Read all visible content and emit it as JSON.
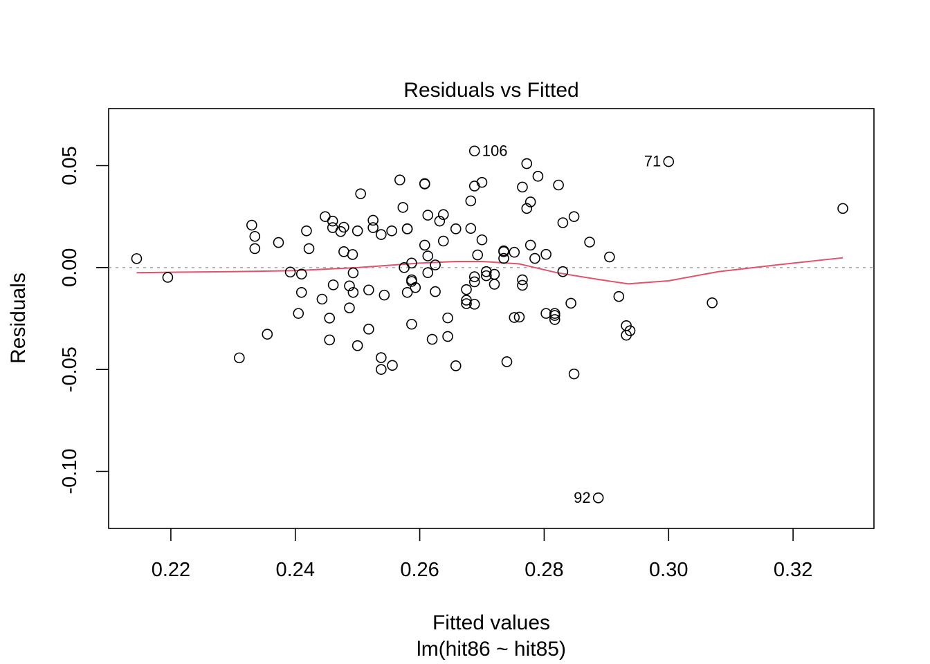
{
  "chart_data": {
    "type": "scatter",
    "title": "Residuals vs Fitted",
    "xlabel": "Fitted values",
    "sublabel": "lm(hit86 ~ hit85)",
    "ylabel": "Residuals",
    "xlim": [
      0.21,
      0.333
    ],
    "ylim": [
      -0.128,
      0.078
    ],
    "xticks": [
      0.22,
      0.24,
      0.26,
      0.28,
      0.3,
      0.32
    ],
    "xtick_labels": [
      "0.22",
      "0.24",
      "0.26",
      "0.28",
      "0.30",
      "0.32"
    ],
    "yticks": [
      -0.1,
      -0.05,
      0.0,
      0.05
    ],
    "ytick_labels": [
      "-0.10",
      "-0.05",
      "0.00",
      "0.05"
    ],
    "zero_line": true,
    "grid": false,
    "legend": "none",
    "colors": {
      "smoother": "#DF536B",
      "points": "#000000",
      "zero_line": "#AAAAAA"
    },
    "points": [
      [
        0.2145,
        0.0044
      ],
      [
        0.2195,
        -0.0048
      ],
      [
        0.231,
        -0.0443
      ],
      [
        0.233,
        0.0208
      ],
      [
        0.2335,
        0.0153
      ],
      [
        0.2335,
        0.0093
      ],
      [
        0.2355,
        -0.0327
      ],
      [
        0.2373,
        0.0123
      ],
      [
        0.2392,
        -0.0022
      ],
      [
        0.2405,
        -0.0225
      ],
      [
        0.241,
        -0.0032
      ],
      [
        0.241,
        -0.0122
      ],
      [
        0.2418,
        0.018
      ],
      [
        0.2422,
        0.0093
      ],
      [
        0.2443,
        -0.0155
      ],
      [
        0.2448,
        0.025
      ],
      [
        0.2455,
        -0.0355
      ],
      [
        0.2455,
        -0.0248
      ],
      [
        0.246,
        0.0228
      ],
      [
        0.246,
        0.0196
      ],
      [
        0.2461,
        -0.0085
      ],
      [
        0.2473,
        0.0177
      ],
      [
        0.2478,
        0.0198
      ],
      [
        0.2478,
        0.0078
      ],
      [
        0.2487,
        -0.009
      ],
      [
        0.2487,
        -0.0198
      ],
      [
        0.2492,
        0.0064
      ],
      [
        0.2493,
        -0.0026
      ],
      [
        0.2493,
        -0.0122
      ],
      [
        0.25,
        0.018
      ],
      [
        0.25,
        -0.0383
      ],
      [
        0.2505,
        0.0362
      ],
      [
        0.2518,
        -0.011
      ],
      [
        0.2518,
        -0.0302
      ],
      [
        0.2525,
        0.0232
      ],
      [
        0.2525,
        0.0196
      ],
      [
        0.2538,
        0.0162
      ],
      [
        0.2538,
        -0.0442
      ],
      [
        0.2538,
        -0.05
      ],
      [
        0.2543,
        -0.0135
      ],
      [
        0.2555,
        0.018
      ],
      [
        0.2556,
        -0.048
      ],
      [
        0.2568,
        0.043
      ],
      [
        0.2573,
        0.0295
      ],
      [
        0.2575,
        0.0
      ],
      [
        0.258,
        0.019
      ],
      [
        0.258,
        0.019
      ],
      [
        0.258,
        -0.0122
      ],
      [
        0.2587,
        0.0022
      ],
      [
        0.2587,
        -0.006
      ],
      [
        0.2587,
        -0.0068
      ],
      [
        0.2587,
        -0.0278
      ],
      [
        0.2593,
        -0.0098
      ],
      [
        0.2608,
        0.0412
      ],
      [
        0.2608,
        0.041
      ],
      [
        0.2608,
        0.011
      ],
      [
        0.2613,
        0.0257
      ],
      [
        0.2613,
        0.0057
      ],
      [
        0.2613,
        -0.0025
      ],
      [
        0.262,
        -0.0352
      ],
      [
        0.2625,
        0.0013
      ],
      [
        0.2625,
        -0.0118
      ],
      [
        0.2632,
        0.0228
      ],
      [
        0.2638,
        0.026
      ],
      [
        0.2638,
        0.013
      ],
      [
        0.2645,
        -0.0247
      ],
      [
        0.2645,
        -0.0338
      ],
      [
        0.2658,
        0.019
      ],
      [
        0.2658,
        -0.0482
      ],
      [
        0.2675,
        -0.0108
      ],
      [
        0.2675,
        -0.016
      ],
      [
        0.2675,
        -0.0177
      ],
      [
        0.2682,
        0.0327
      ],
      [
        0.2682,
        0.0192
      ],
      [
        0.2688,
        0.0572
      ],
      [
        0.2688,
        0.04
      ],
      [
        0.2688,
        -0.0045
      ],
      [
        0.2688,
        -0.007
      ],
      [
        0.2688,
        -0.018
      ],
      [
        0.2693,
        0.0062
      ],
      [
        0.27,
        0.0418
      ],
      [
        0.27,
        0.0136
      ],
      [
        0.2707,
        -0.002
      ],
      [
        0.2707,
        -0.004
      ],
      [
        0.272,
        -0.0033
      ],
      [
        0.272,
        -0.0082
      ],
      [
        0.2735,
        0.0082
      ],
      [
        0.2735,
        0.0078
      ],
      [
        0.2735,
        0.0045
      ],
      [
        0.274,
        -0.0462
      ],
      [
        0.2752,
        0.0075
      ],
      [
        0.2752,
        -0.0245
      ],
      [
        0.276,
        -0.0243
      ],
      [
        0.2765,
        0.0395
      ],
      [
        0.2765,
        -0.006
      ],
      [
        0.2765,
        -0.0087
      ],
      [
        0.2772,
        0.051
      ],
      [
        0.2772,
        0.029
      ],
      [
        0.2778,
        0.0322
      ],
      [
        0.2778,
        0.011
      ],
      [
        0.2785,
        0.0045
      ],
      [
        0.279,
        0.0448
      ],
      [
        0.2803,
        0.0065
      ],
      [
        0.2803,
        -0.0225
      ],
      [
        0.2817,
        -0.0225
      ],
      [
        0.2817,
        -0.0235
      ],
      [
        0.2817,
        -0.0255
      ],
      [
        0.2823,
        0.0405
      ],
      [
        0.283,
        0.022
      ],
      [
        0.283,
        -0.002
      ],
      [
        0.2843,
        -0.0175
      ],
      [
        0.2848,
        0.025
      ],
      [
        0.2848,
        -0.0522
      ],
      [
        0.2873,
        0.0125
      ],
      [
        0.2887,
        -0.113
      ],
      [
        0.2905,
        0.0052
      ],
      [
        0.292,
        -0.0142
      ],
      [
        0.2932,
        -0.0285
      ],
      [
        0.2932,
        -0.0332
      ],
      [
        0.2938,
        -0.031
      ],
      [
        0.3,
        0.052
      ],
      [
        0.307,
        -0.0173
      ],
      [
        0.328,
        0.029
      ]
    ],
    "labeled_points": [
      {
        "label": "106",
        "x": 0.2688,
        "y": 0.0572,
        "side": "right"
      },
      {
        "label": "71",
        "x": 0.3,
        "y": 0.052,
        "side": "left"
      },
      {
        "label": "92",
        "x": 0.2887,
        "y": -0.113,
        "side": "left"
      }
    ],
    "smoother": [
      [
        0.2145,
        -0.0025
      ],
      [
        0.22,
        -0.0023
      ],
      [
        0.23,
        -0.002
      ],
      [
        0.24,
        -0.0015
      ],
      [
        0.25,
        0.0
      ],
      [
        0.26,
        0.0022
      ],
      [
        0.266,
        0.003
      ],
      [
        0.27,
        0.003
      ],
      [
        0.276,
        0.0018
      ],
      [
        0.282,
        -0.0025
      ],
      [
        0.288,
        -0.0055
      ],
      [
        0.2935,
        -0.008
      ],
      [
        0.3,
        -0.0065
      ],
      [
        0.308,
        -0.002
      ],
      [
        0.318,
        0.0015
      ],
      [
        0.328,
        0.0048
      ]
    ]
  }
}
